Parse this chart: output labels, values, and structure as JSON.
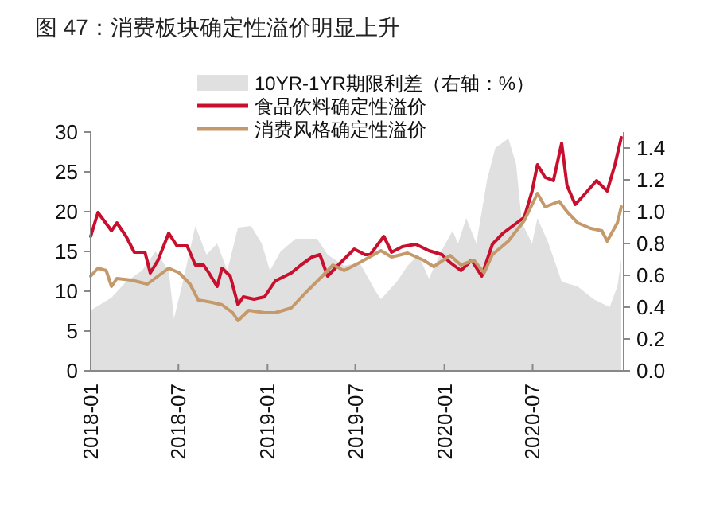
{
  "chart_data": {
    "type": "line",
    "title": "图 47：消费板块确定性溢价明显上升",
    "legend": "top",
    "xlim": [
      "2018-01-01",
      "2021-01-05"
    ],
    "xticks": [
      "2018-01",
      "2018-07",
      "2019-01",
      "2019-07",
      "2020-01",
      "2020-07"
    ],
    "ylim": [
      0,
      30
    ],
    "yticks": [
      0,
      5,
      10,
      15,
      20,
      25,
      30
    ],
    "y2lim": [
      0,
      1.5
    ],
    "y2ticks": [
      {
        "value": 0,
        "label": "0.0"
      },
      {
        "value": 0.2,
        "label": "0.2"
      },
      {
        "value": 0.4,
        "label": "0.4"
      },
      {
        "value": 0.6,
        "label": "0.6"
      },
      {
        "value": 0.8,
        "label": "0.8"
      },
      {
        "value": 1,
        "label": "1.0"
      },
      {
        "value": 1.2,
        "label": "1.2"
      },
      {
        "value": 1.4,
        "label": "1.4"
      }
    ],
    "series": [
      {
        "name": "10YR-1YR期限利差（右轴：%）",
        "type": "area",
        "axis": "y2",
        "color": "#e0e0e0",
        "x": [
          "2018-01-01",
          "2018-02-13",
          "2018-03-15",
          "2018-04-17",
          "2018-05-15",
          "2018-06-11",
          "2018-06-22",
          "2018-07-08",
          "2018-08-05",
          "2018-08-28",
          "2018-09-19",
          "2018-10-10",
          "2018-11-01",
          "2018-11-28",
          "2018-12-20",
          "2019-01-06",
          "2019-01-28",
          "2019-02-28",
          "2019-04-13",
          "2019-05-05",
          "2019-06-08",
          "2019-07-10",
          "2019-08-12",
          "2019-08-23",
          "2019-09-25",
          "2019-10-17",
          "2019-11-08",
          "2019-11-30",
          "2019-12-27",
          "2020-01-18",
          "2020-01-29",
          "2020-02-15",
          "2020-03-07",
          "2020-03-29",
          "2020-04-15",
          "2020-05-12",
          "2020-05-28",
          "2020-06-09",
          "2020-06-30",
          "2020-07-11",
          "2020-08-03",
          "2020-08-30",
          "2020-10-02",
          "2020-11-04",
          "2020-12-07",
          "2020-12-23",
          "2020-12-31"
        ],
        "values": [
          0.38,
          0.46,
          0.56,
          0.63,
          0.75,
          0.63,
          0.33,
          0.53,
          0.91,
          0.73,
          0.8,
          0.63,
          0.9,
          0.91,
          0.8,
          0.63,
          0.75,
          0.83,
          0.83,
          0.73,
          0.66,
          0.68,
          0.5,
          0.45,
          0.56,
          0.66,
          0.73,
          0.58,
          0.76,
          0.88,
          0.8,
          0.96,
          0.8,
          1.2,
          1.4,
          1.46,
          1.3,
          0.93,
          0.8,
          0.96,
          0.8,
          0.56,
          0.53,
          0.45,
          0.4,
          0.53,
          0.7
        ]
      },
      {
        "name": "食品饮料确定性溢价",
        "color": "#c8102e",
        "x": [
          "2018-01-01",
          "2018-01-16",
          "2018-02-13",
          "2018-02-24",
          "2018-03-15",
          "2018-04-01",
          "2018-04-23",
          "2018-05-04",
          "2018-05-20",
          "2018-06-11",
          "2018-06-28",
          "2018-07-19",
          "2018-08-05",
          "2018-08-22",
          "2018-09-02",
          "2018-09-19",
          "2018-09-29",
          "2018-10-16",
          "2018-11-01",
          "2018-11-12",
          "2018-12-04",
          "2018-12-26",
          "2019-01-17",
          "2019-02-19",
          "2019-03-11",
          "2019-04-03",
          "2019-04-19",
          "2019-05-05",
          "2019-05-27",
          "2019-06-29",
          "2019-07-21",
          "2019-08-01",
          "2019-08-29",
          "2019-09-14",
          "2019-10-06",
          "2019-11-03",
          "2019-11-30",
          "2019-12-27",
          "2020-01-13",
          "2020-02-04",
          "2020-02-26",
          "2020-03-18",
          "2020-04-09",
          "2020-05-01",
          "2020-05-23",
          "2020-06-14",
          "2020-06-30",
          "2020-07-11",
          "2020-07-27",
          "2020-08-13",
          "2020-08-30",
          "2020-09-10",
          "2020-09-27",
          "2020-10-18",
          "2020-11-10",
          "2020-12-02",
          "2020-12-18",
          "2020-12-31"
        ],
        "values": [
          16.9,
          19.9,
          17.6,
          18.6,
          16.9,
          14.9,
          14.9,
          12.3,
          13.9,
          17.3,
          15.7,
          15.7,
          13.3,
          13.3,
          12.3,
          10.6,
          12.9,
          11.9,
          8.3,
          9.3,
          9,
          9.3,
          11.3,
          12.3,
          13.3,
          14.3,
          14.6,
          11.9,
          13.3,
          15.3,
          14.6,
          14.6,
          16.9,
          14.9,
          15.6,
          15.9,
          15.1,
          14.6,
          13.6,
          12.6,
          13.9,
          11.9,
          15.9,
          17.3,
          18.3,
          19.3,
          22.6,
          25.9,
          24.3,
          23.9,
          28.6,
          23.3,
          20.9,
          22.3,
          23.9,
          22.6,
          25.9,
          29.3
        ]
      },
      {
        "name": "消费风格确定性溢价",
        "color": "#c49a6c",
        "x": [
          "2018-01-01",
          "2018-01-16",
          "2018-02-02",
          "2018-02-13",
          "2018-02-24",
          "2018-03-26",
          "2018-04-28",
          "2018-06-11",
          "2018-07-03",
          "2018-07-25",
          "2018-08-11",
          "2018-09-08",
          "2018-09-29",
          "2018-10-21",
          "2018-11-01",
          "2018-11-23",
          "2018-12-26",
          "2019-01-17",
          "2019-02-19",
          "2019-03-22",
          "2019-04-24",
          "2019-05-16",
          "2019-06-08",
          "2019-07-10",
          "2019-08-23",
          "2019-09-14",
          "2019-10-17",
          "2019-11-19",
          "2019-12-10",
          "2020-01-13",
          "2020-02-04",
          "2020-03-02",
          "2020-03-23",
          "2020-04-09",
          "2020-05-12",
          "2020-06-14",
          "2020-07-11",
          "2020-07-27",
          "2020-08-25",
          "2020-09-10",
          "2020-10-02",
          "2020-10-29",
          "2020-11-21",
          "2020-12-02",
          "2020-12-23",
          "2020-12-31"
        ],
        "values": [
          11.9,
          12.9,
          12.6,
          10.6,
          11.6,
          11.4,
          10.9,
          12.9,
          12.3,
          10.9,
          8.9,
          8.6,
          8.3,
          7.3,
          6.3,
          7.6,
          7.3,
          7.3,
          7.9,
          9.9,
          11.9,
          13.3,
          12.6,
          13.6,
          15.1,
          14.3,
          14.8,
          13.9,
          13.1,
          14.5,
          13.3,
          13.9,
          12.3,
          14.6,
          16.3,
          18.9,
          22.3,
          20.6,
          21.3,
          20,
          18.6,
          17.9,
          17.6,
          16.3,
          18.6,
          20.6
        ]
      }
    ]
  }
}
